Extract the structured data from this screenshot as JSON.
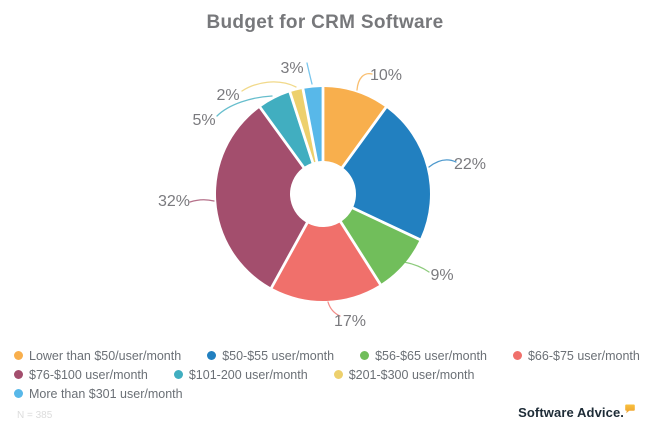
{
  "title": "Budget for CRM Software",
  "chart_data": {
    "type": "pie",
    "subtype": "donut",
    "title": "Budget for CRM Software",
    "value_suffix": "%",
    "start_angle_deg": 0,
    "direction": "clockwise",
    "legend_position": "bottom",
    "slices": [
      {
        "label": "Lower than $50/user/month",
        "value": 10,
        "color": "#F8AF4D"
      },
      {
        "label": "$50-$55 user/month",
        "value": 22,
        "color": "#2280C0"
      },
      {
        "label": "$56-$65 user/month",
        "value": 9,
        "color": "#71BE5B"
      },
      {
        "label": "$66-$75 user/month",
        "value": 17,
        "color": "#F0706B"
      },
      {
        "label": "$76-$100 user/month",
        "value": 32,
        "color": "#A34E6D"
      },
      {
        "label": "$101-200 user/month",
        "value": 5,
        "color": "#41AEC0"
      },
      {
        "label": "$201-$300 user/month",
        "value": 2,
        "color": "#EDD06D"
      },
      {
        "label": "More than $301 user/month",
        "value": 3,
        "color": "#58B8E9"
      }
    ]
  },
  "footer": {
    "sample_size": "N = 385",
    "brand": "Software Advice.",
    "brand_bubble_color_top": "#F9C13E",
    "brand_bubble_color_bottom": "#EC9F2F"
  }
}
